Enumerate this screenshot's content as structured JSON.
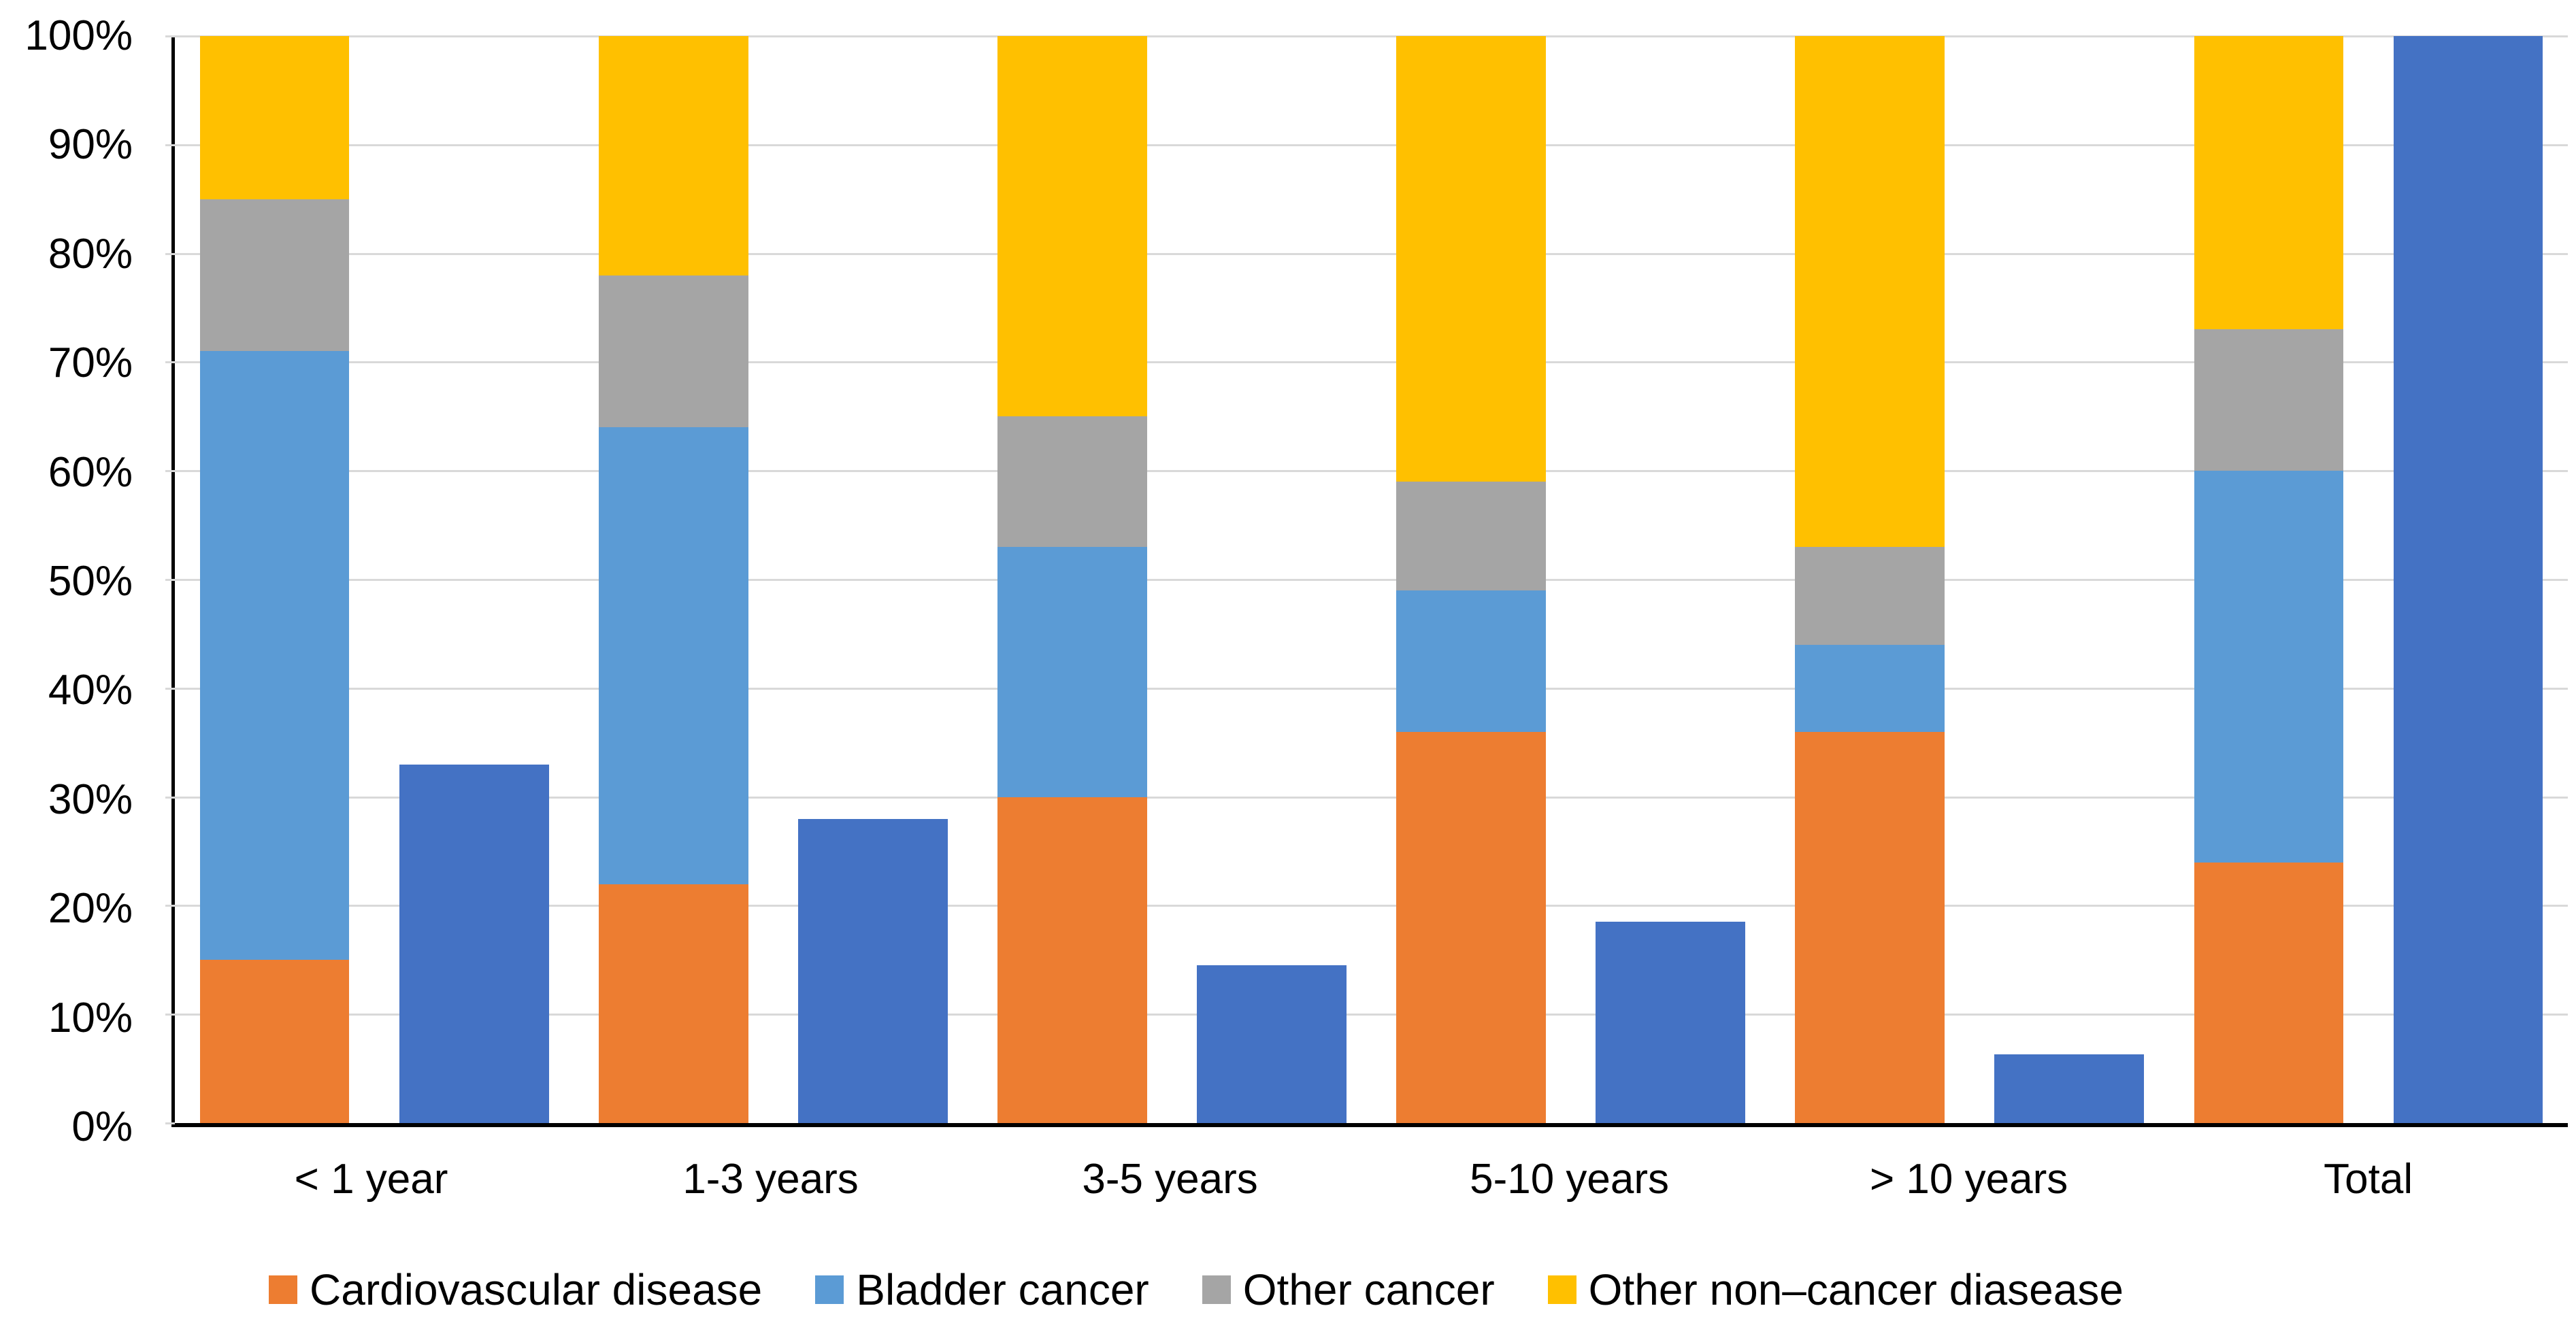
{
  "chart_data": {
    "type": "bar",
    "subtype": "stacked-percentage-with-paired-single-bars",
    "title": "",
    "xlabel": "",
    "ylabel": "",
    "ylim": [
      0,
      100
    ],
    "grid": true,
    "legend_position": "bottom",
    "categories": [
      "< 1 year",
      "1-3 years",
      "3-5 years",
      "5-10 years",
      "> 10 years",
      "Total"
    ],
    "y_tick_labels": [
      "0%",
      "10%",
      "20%",
      "30%",
      "40%",
      "50%",
      "60%",
      "70%",
      "80%",
      "90%",
      "100%"
    ],
    "stacked_series": [
      {
        "name": "Cardiovascular disease",
        "color": "#ED7D31",
        "values": [
          15,
          22,
          30,
          36,
          36,
          24
        ]
      },
      {
        "name": "Bladder cancer",
        "color": "#5B9BD5",
        "values": [
          56,
          42,
          23,
          13,
          8,
          36
        ]
      },
      {
        "name": "Other cancer",
        "color": "#A5A5A5",
        "values": [
          14,
          14,
          12,
          10,
          9,
          13
        ]
      },
      {
        "name": "Other non–cancer diasease",
        "color": "#FFC000",
        "values": [
          15,
          22,
          35,
          41,
          47,
          27
        ]
      }
    ],
    "unlabeled_single_bar_series": {
      "name": "",
      "color": "#4472C4",
      "values": [
        33,
        28,
        14.5,
        18.5,
        6.3,
        100
      ]
    }
  },
  "colors": {
    "background": "#FFFFFF",
    "gridline": "#D9D9D9",
    "axis_line": "#000000",
    "text": "#000000"
  }
}
